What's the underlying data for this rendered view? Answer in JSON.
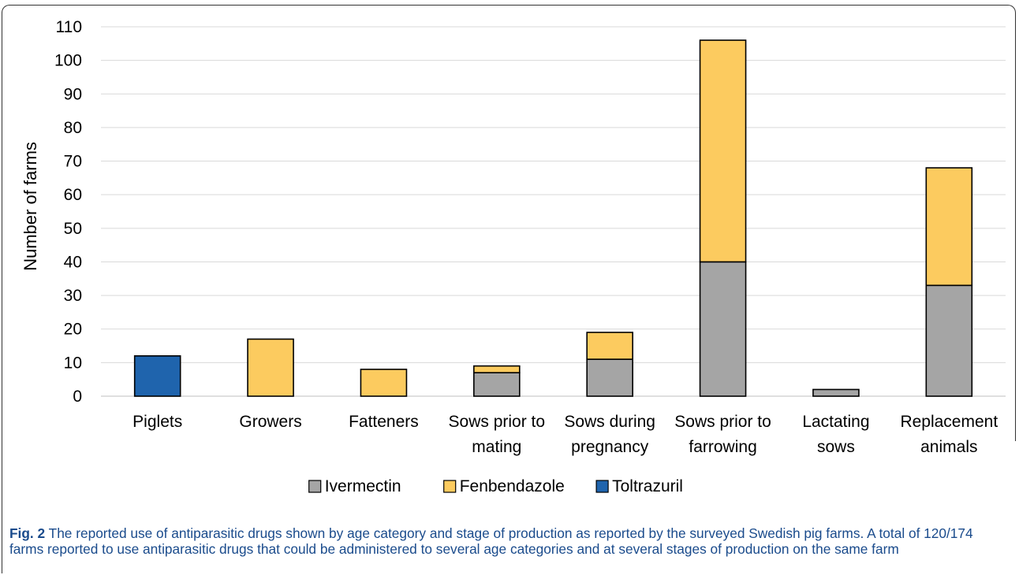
{
  "chart_data": {
    "type": "bar",
    "stacked": true,
    "categories": [
      [
        "Piglets"
      ],
      [
        "Growers"
      ],
      [
        "Fatteners"
      ],
      [
        "Sows prior to",
        "mating"
      ],
      [
        "Sows during",
        "pregnancy"
      ],
      [
        "Sows prior to",
        "farrowing"
      ],
      [
        "Lactating",
        "sows"
      ],
      [
        "Replacement",
        "animals"
      ]
    ],
    "series": [
      {
        "name": "Ivermectin",
        "color": "#a5a5a5",
        "values": [
          0,
          0,
          0,
          7,
          11,
          40,
          2,
          33
        ]
      },
      {
        "name": "Fenbendazole",
        "color": "#fccb5f",
        "values": [
          0,
          17,
          8,
          2,
          8,
          66,
          0,
          35
        ]
      },
      {
        "name": "Toltrazuril",
        "color": "#1f64ad",
        "values": [
          12,
          0,
          0,
          0,
          0,
          0,
          0,
          0
        ]
      }
    ],
    "title": "",
    "xlabel": "",
    "ylabel": "Number of farms",
    "ylim": [
      0,
      110
    ],
    "yticks": [
      "0",
      "10",
      "20",
      "30",
      "40",
      "50",
      "60",
      "70",
      "80",
      "90",
      "100",
      "110"
    ],
    "grid": true,
    "legend_position": "bottom"
  },
  "caption": {
    "label": "Fig. 2",
    "text": "The reported use of antiparasitic drugs shown by age category and stage of production as reported by the surveyed Swedish pig farms. A total of 120/174 farms reported to use antiparasitic drugs that could be administered to several age categories and at several stages of production on the same farm"
  }
}
